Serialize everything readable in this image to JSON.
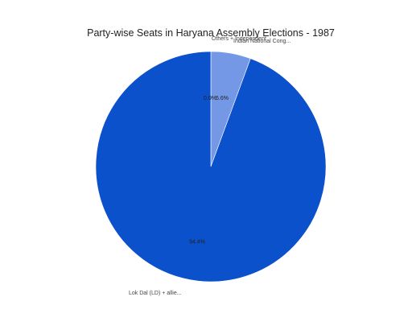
{
  "chart_data": {
    "type": "pie",
    "title": "Party-wise Seats in Haryana Assembly Elections - 1987",
    "slices": [
      {
        "label": "Indian National Cong...",
        "value": 5.6,
        "display": "5.6%",
        "color": "#7598e6"
      },
      {
        "label": "Lok Dal (LD) + allie...",
        "value": 94.4,
        "display": "94.4%",
        "color": "#0b51cc"
      },
      {
        "label": "Others + Independent",
        "value": 0.0,
        "display": "0.0%",
        "color": "#0b51cc"
      }
    ]
  }
}
